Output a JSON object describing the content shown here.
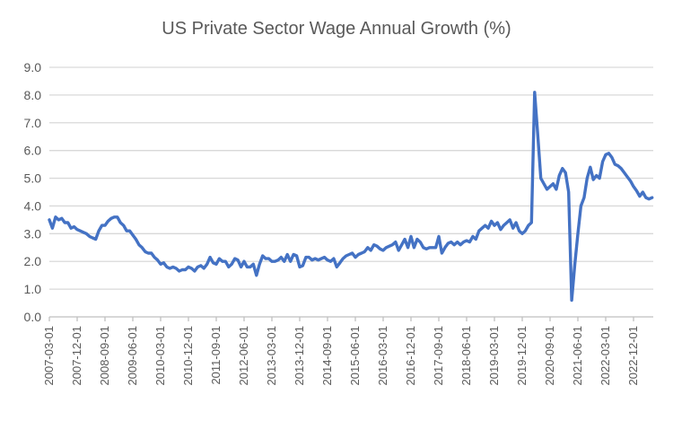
{
  "chart_data": {
    "type": "line",
    "title": "US Private Sector Wage Annual Growth (%)",
    "xlabel": "",
    "ylabel": "",
    "ylim": [
      0,
      9
    ],
    "y_ticks": [
      "0.0",
      "1.0",
      "2.0",
      "3.0",
      "4.0",
      "5.0",
      "6.0",
      "7.0",
      "8.0",
      "9.0"
    ],
    "grid": "horizontal",
    "legend": "none",
    "x_start": "2007-03-01",
    "x_interval": "monthly",
    "x_tick_every_months": 9,
    "x_tick_labels": [
      "2007-03-01",
      "2007-12-01",
      "2008-09-01",
      "2009-06-01",
      "2010-03-01",
      "2010-12-01",
      "2011-09-01",
      "2012-06-01",
      "2013-03-01",
      "2013-12-01",
      "2014-09-01",
      "2015-06-01",
      "2016-03-01",
      "2016-12-01",
      "2017-09-01",
      "2018-06-01",
      "2019-03-01",
      "2019-12-01",
      "2020-09-01",
      "2021-06-01",
      "2022-03-01",
      "2022-12-01"
    ],
    "series": [
      {
        "name": "US private sector wage annual growth (%)",
        "color": "#4472C4",
        "values": [
          3.5,
          3.2,
          3.6,
          3.5,
          3.55,
          3.4,
          3.4,
          3.2,
          3.25,
          3.15,
          3.1,
          3.05,
          3.0,
          2.9,
          2.85,
          2.8,
          3.1,
          3.3,
          3.3,
          3.45,
          3.55,
          3.6,
          3.6,
          3.4,
          3.3,
          3.1,
          3.1,
          2.95,
          2.8,
          2.6,
          2.5,
          2.35,
          2.3,
          2.3,
          2.15,
          2.05,
          1.9,
          1.95,
          1.8,
          1.75,
          1.8,
          1.75,
          1.65,
          1.7,
          1.7,
          1.8,
          1.75,
          1.65,
          1.8,
          1.85,
          1.75,
          1.9,
          2.15,
          1.95,
          1.9,
          2.1,
          2.0,
          2.0,
          1.8,
          1.9,
          2.1,
          2.05,
          1.8,
          2.0,
          1.8,
          1.8,
          1.9,
          1.5,
          1.9,
          2.2,
          2.1,
          2.1,
          2.0,
          2.0,
          2.05,
          2.15,
          2.0,
          2.25,
          2.0,
          2.25,
          2.2,
          1.8,
          1.85,
          2.15,
          2.15,
          2.05,
          2.1,
          2.05,
          2.1,
          2.15,
          2.05,
          2.0,
          2.1,
          1.8,
          1.95,
          2.1,
          2.2,
          2.25,
          2.3,
          2.15,
          2.25,
          2.3,
          2.35,
          2.5,
          2.4,
          2.6,
          2.55,
          2.45,
          2.4,
          2.5,
          2.55,
          2.6,
          2.7,
          2.4,
          2.6,
          2.8,
          2.5,
          2.9,
          2.5,
          2.8,
          2.7,
          2.5,
          2.45,
          2.5,
          2.5,
          2.5,
          2.9,
          2.3,
          2.5,
          2.65,
          2.7,
          2.6,
          2.7,
          2.6,
          2.7,
          2.75,
          2.7,
          2.9,
          2.8,
          3.1,
          3.2,
          3.3,
          3.2,
          3.45,
          3.3,
          3.4,
          3.15,
          3.3,
          3.4,
          3.5,
          3.2,
          3.4,
          3.1,
          3.0,
          3.1,
          3.3,
          3.4,
          8.1,
          6.6,
          5.0,
          4.8,
          4.6,
          4.7,
          4.8,
          4.6,
          5.1,
          5.35,
          5.2,
          4.5,
          0.6,
          1.9,
          3.0,
          4.0,
          4.3,
          5.0,
          5.4,
          4.95,
          5.1,
          5.0,
          5.6,
          5.85,
          5.9,
          5.75,
          5.5,
          5.45,
          5.35,
          5.2,
          5.05,
          4.9,
          4.7,
          4.55,
          4.35,
          4.5,
          4.3,
          4.25,
          4.3
        ]
      }
    ],
    "colors": {
      "line": "#4472C4",
      "gridline": "#D9D9D9",
      "axis": "#BFBFBF",
      "title_text": "#595959",
      "tick_text": "#595959",
      "background": "#FFFFFF"
    }
  }
}
